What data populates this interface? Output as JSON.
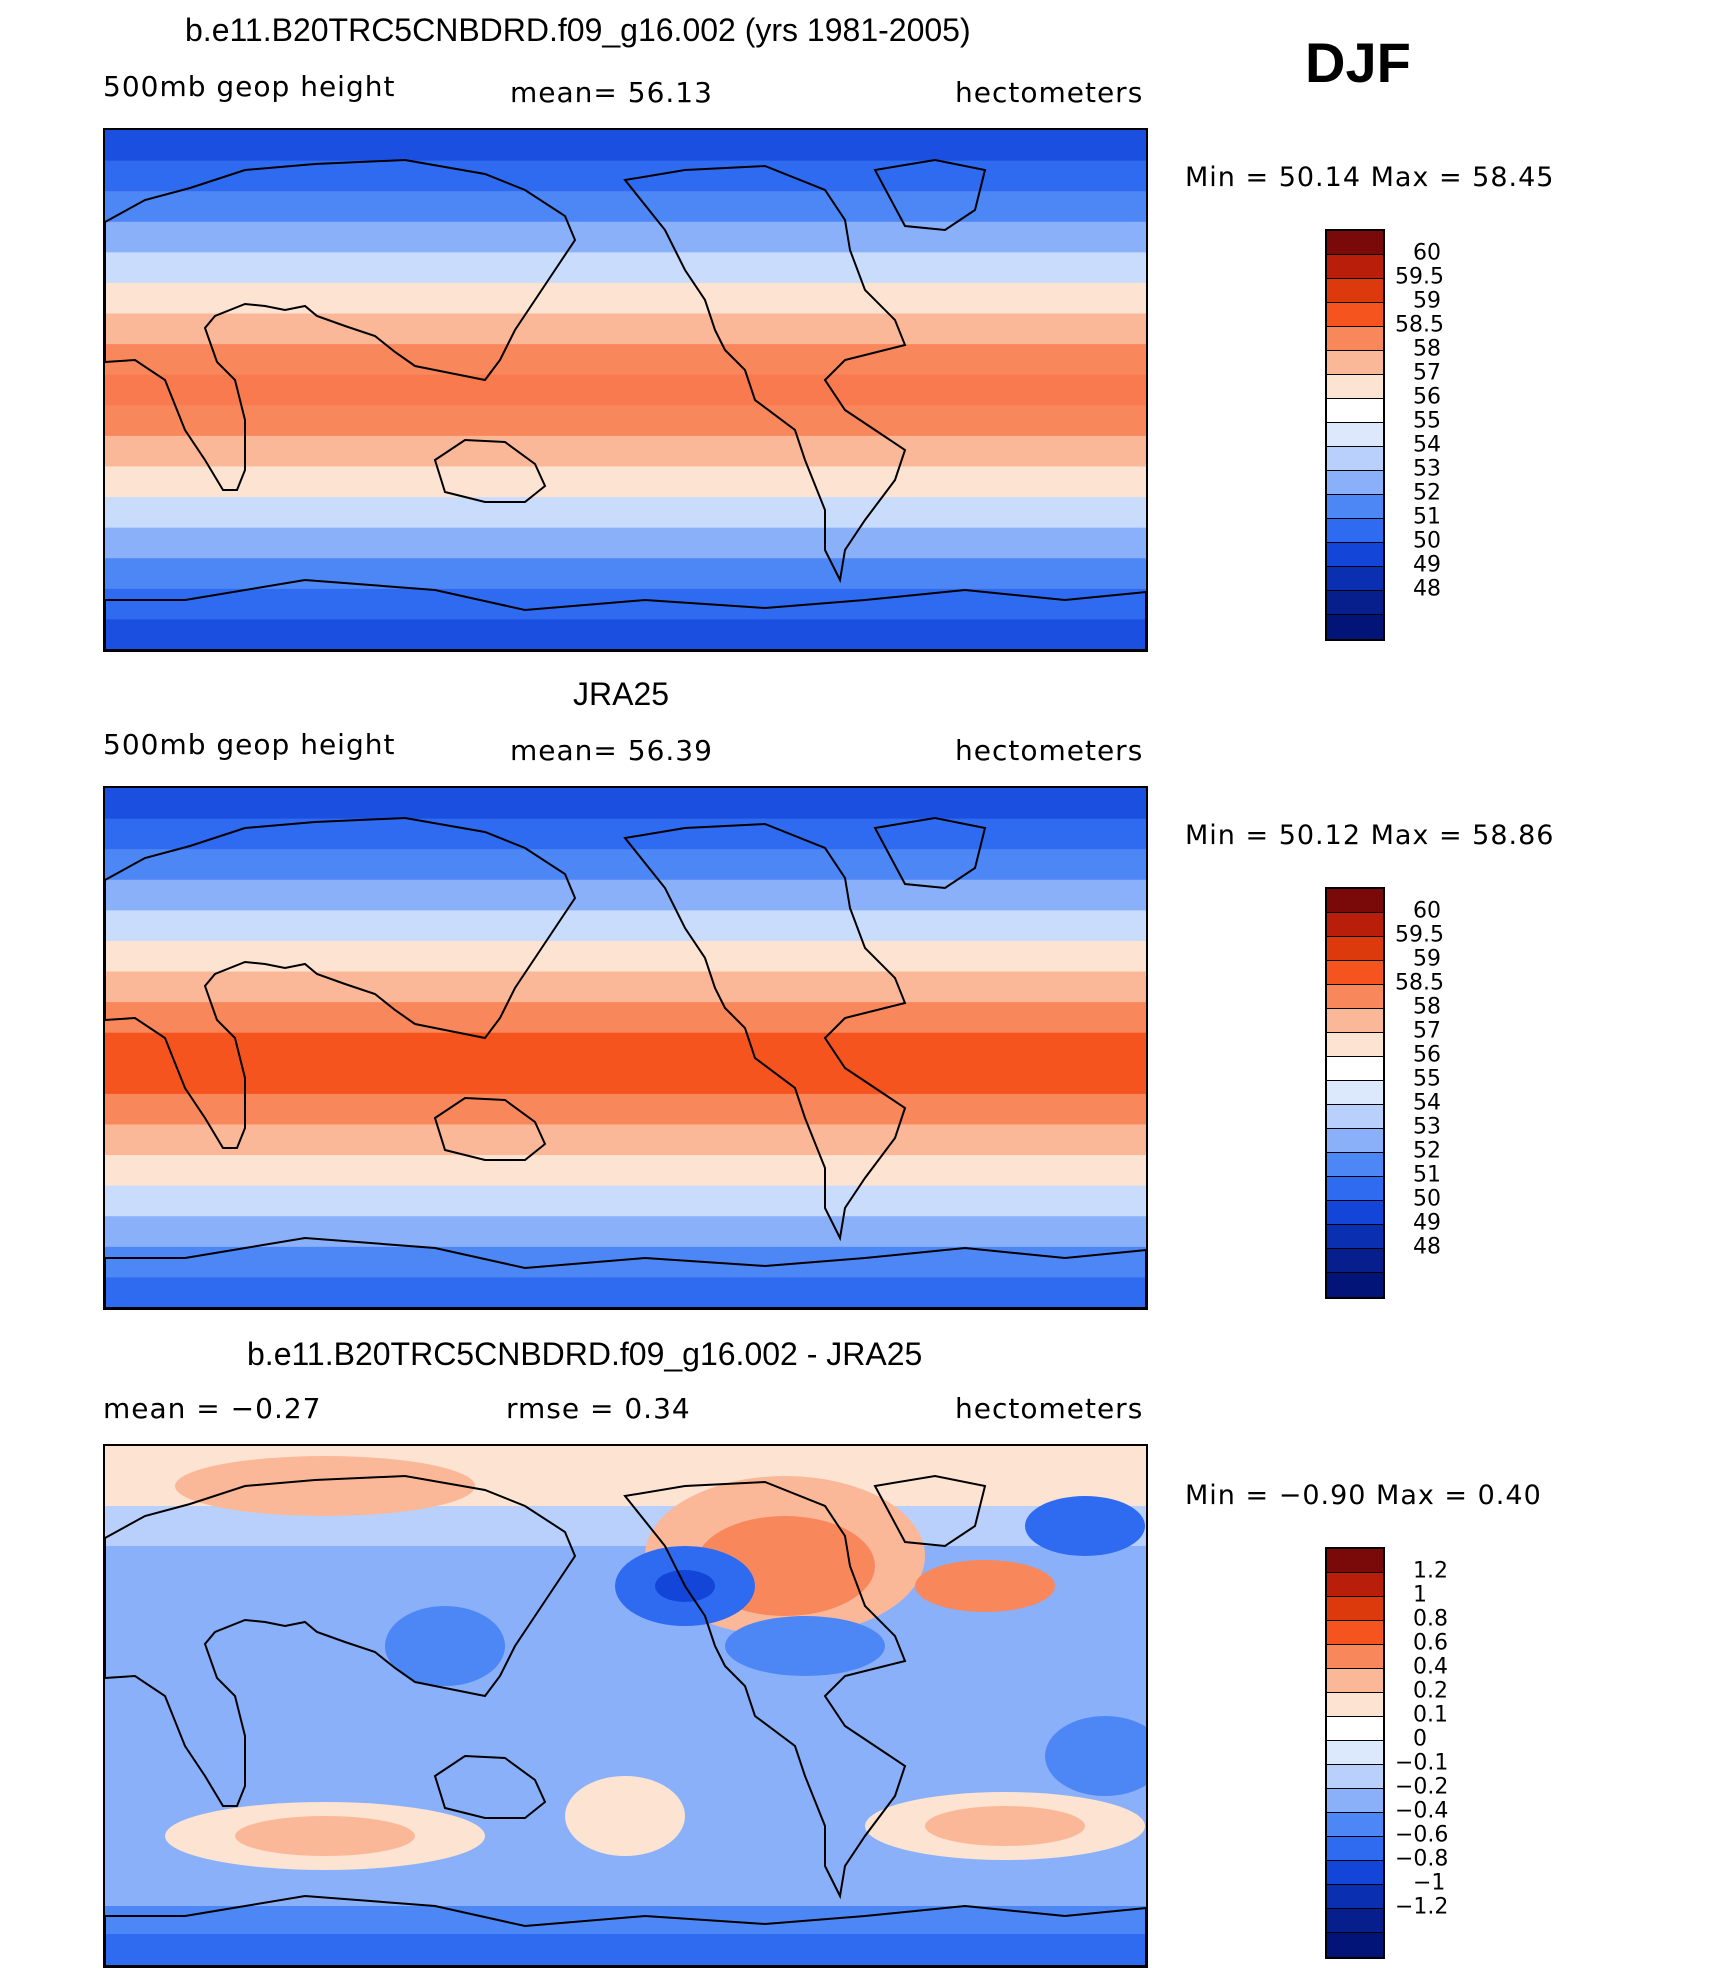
{
  "season": "DJF",
  "panels": [
    {
      "title": "b.e11.B20TRC5CNBDRD.f09_g16.002 (yrs 1981-2005)",
      "left_label": "500mb geop height",
      "center_label": "mean=  56.13",
      "units": "hectometers",
      "min_max": "Min =   50.14 Max =   58.45",
      "colorbar_labels": [
        "60",
        "59.5",
        "59",
        "58.5",
        "58",
        "57",
        "56",
        "55",
        "54",
        "53",
        "52",
        "51",
        "50",
        "49",
        "48"
      ],
      "bands": [
        "#1b4fe0",
        "#2f6bf0",
        "#4d86f5",
        "#8ab0fa",
        "#c9dcfc",
        "#fde3d2",
        "#fbb899",
        "#f9875c",
        "#f97a4f",
        "#f9875c",
        "#fbb899",
        "#fde3d2",
        "#c9dcfc",
        "#8ab0fa",
        "#4d86f5",
        "#2f6bf0",
        "#1b4fe0"
      ]
    },
    {
      "title": "JRA25",
      "left_label": "500mb geop height",
      "center_label": "mean=  56.39",
      "units": "hectometers",
      "min_max": "Min =   50.12 Max =   58.86",
      "colorbar_labels": [
        "60",
        "59.5",
        "59",
        "58.5",
        "58",
        "57",
        "56",
        "55",
        "54",
        "53",
        "52",
        "51",
        "50",
        "49",
        "48"
      ],
      "bands": [
        "#1b4fe0",
        "#2f6bf0",
        "#4d86f5",
        "#8ab0fa",
        "#c9dcfc",
        "#fde3d2",
        "#fbb899",
        "#f9875c",
        "#f5541e",
        "#f5541e",
        "#f9875c",
        "#fbb899",
        "#fde3d2",
        "#c9dcfc",
        "#8ab0fa",
        "#4d86f5",
        "#2f6bf0"
      ]
    },
    {
      "title": "b.e11.B20TRC5CNBDRD.f09_g16.002 - JRA25",
      "left_label": "mean =   −0.27",
      "center_label": "rmse =    0.34",
      "units": "hectometers",
      "min_max": "Min =  −0.90 Max =    0.40",
      "colorbar_labels": [
        "1.2",
        "1",
        "0.8",
        "0.6",
        "0.4",
        "0.2",
        "0.1",
        "0",
        "−0.1",
        "−0.2",
        "−0.4",
        "−0.6",
        "−0.8",
        "−1",
        "−1.2"
      ],
      "bands": []
    }
  ],
  "colorbar_colors": [
    "#7a0a0a",
    "#b81e0a",
    "#dc3a0c",
    "#f5541e",
    "#f9875c",
    "#fbb899",
    "#fde3d2",
    "#ffffff",
    "#dce9fd",
    "#b8d0fb",
    "#8ab0fa",
    "#4d86f5",
    "#2f6bf0",
    "#1346d8",
    "#0a2fb0",
    "#061f8c",
    "#021478"
  ]
}
